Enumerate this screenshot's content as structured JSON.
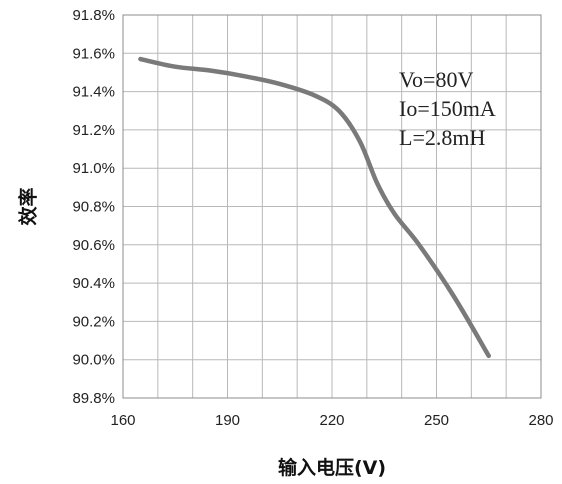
{
  "chart_data": {
    "type": "line",
    "title": "",
    "xlabel": "输入电压(V)",
    "ylabel": "效率",
    "xlim": [
      160,
      280
    ],
    "ylim": [
      89.8,
      91.8
    ],
    "x_ticks": [
      160,
      190,
      220,
      250,
      280
    ],
    "x_tick_labels": [
      "160",
      "190",
      "220",
      "250",
      "280"
    ],
    "x_minor_step": 10,
    "y_ticks": [
      89.8,
      90.0,
      90.2,
      90.4,
      90.6,
      90.8,
      91.0,
      91.2,
      91.4,
      91.6,
      91.8
    ],
    "y_tick_labels": [
      "89.8%",
      "90.0%",
      "90.2%",
      "90.4%",
      "90.6%",
      "90.8%",
      "91.0%",
      "91.2%",
      "91.4%",
      "91.6%",
      "91.8%"
    ],
    "grid": true,
    "series": [
      {
        "color": "#7a7a7a",
        "x": [
          165,
          175,
          185,
          195,
          205,
          215,
          222,
          228,
          233,
          238,
          245,
          255,
          265
        ],
        "y": [
          91.57,
          91.53,
          91.51,
          91.48,
          91.44,
          91.38,
          91.3,
          91.14,
          90.92,
          90.76,
          90.6,
          90.33,
          90.02
        ]
      }
    ],
    "annotations": [
      "Vo=80V",
      "Io=150mA",
      "L=2.8mH"
    ]
  }
}
